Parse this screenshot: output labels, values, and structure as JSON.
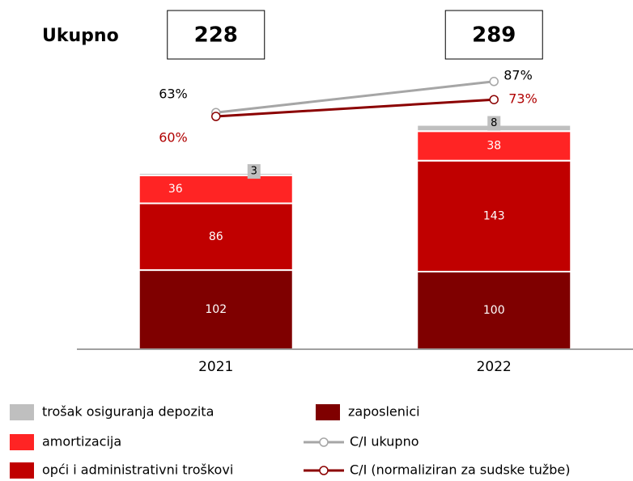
{
  "chart_data": {
    "type": "bar",
    "stacked": true,
    "categories": [
      "2021",
      "2022"
    ],
    "ylim": [
      0,
      450
    ],
    "y2lim": [
      -120,
      150
    ],
    "totals": {
      "label": "Ukupno",
      "values": [
        228,
        289
      ]
    },
    "series": [
      {
        "name": "zaposlenici",
        "color": "#7f0000",
        "values": [
          102,
          100
        ]
      },
      {
        "name": "opći i administrativni troškovi",
        "color": "#c00000",
        "values": [
          86,
          143
        ]
      },
      {
        "name": "amortizacija",
        "color": "#ff2424",
        "values": [
          36,
          38
        ]
      },
      {
        "name": "trošak osiguranja depozita",
        "color": "#bfbfbf",
        "values": [
          3,
          8
        ]
      },
      {
        "name": "C/I ukupno",
        "type": "line",
        "axis": "y2",
        "color": "#a6a6a6",
        "values": [
          63,
          87
        ],
        "value_labels": [
          "63%",
          "87%"
        ]
      },
      {
        "name": "C/I (normaliziran za sudske tužbe)",
        "type": "line",
        "axis": "y2",
        "color": "#8b0000",
        "values": [
          60,
          73
        ],
        "value_labels": [
          "60%",
          "73%"
        ]
      }
    ]
  }
}
